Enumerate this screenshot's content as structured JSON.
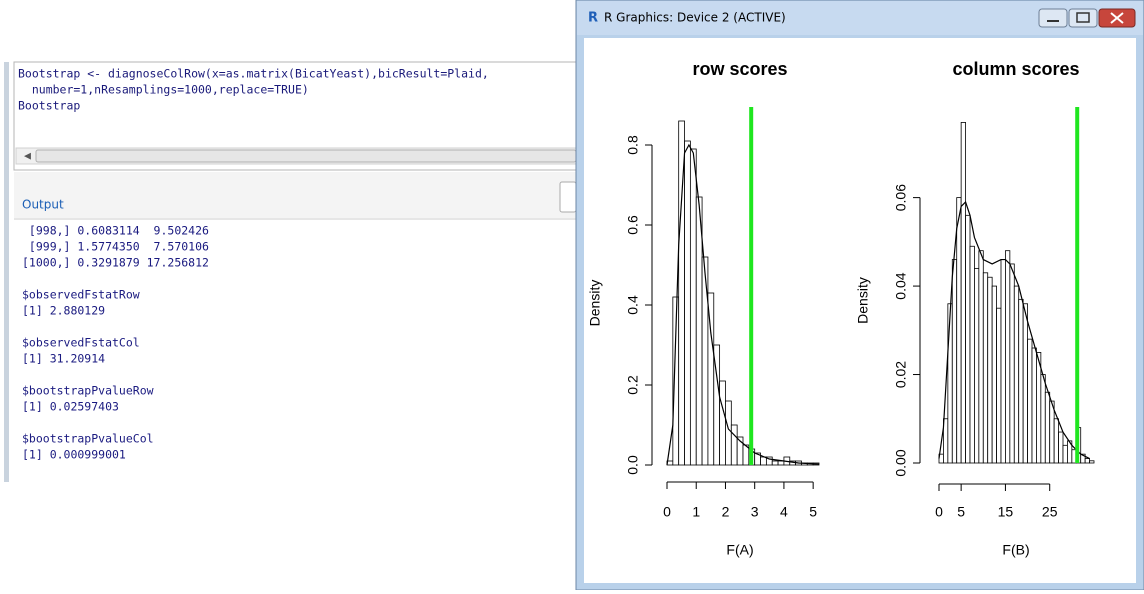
{
  "console": {
    "code": [
      "Bootstrap <- diagnoseColRow(x=as.matrix(BicatYeast),bicResult=Plaid,",
      "  number=1,nResamplings=1000,replace=TRUE)",
      "Bootstrap"
    ],
    "output_label": "Output",
    "output": [
      [
        " [998,] 0.6083114  9.502426",
        " [999,] 1.5774350  7.570106",
        "[1000,] 0.3291879 17.256812"
      ],
      [
        "$observedFstatRow",
        "[1] 2.880129"
      ],
      [
        "$observedFstatCol",
        "[1] 31.20914"
      ],
      [
        "$bootstrapPvalueRow",
        "[1] 0.02597403"
      ],
      [
        "$bootstrapPvalueCol",
        "[1] 0.000999001"
      ]
    ]
  },
  "window": {
    "title": "R Graphics: Device 2 (ACTIVE)"
  },
  "chart_data": [
    {
      "type": "histogram",
      "title": "row scores",
      "xlabel": "F(A)",
      "ylabel": "Density",
      "bins": [
        0,
        0.2,
        0.4,
        0.6,
        0.8,
        1,
        1.2,
        1.4,
        1.6,
        1.8,
        2,
        2.2,
        2.4,
        2.6,
        2.8,
        3,
        3.2,
        3.4,
        3.6,
        3.8,
        4,
        4.2,
        4.4,
        4.6,
        4.8,
        5,
        5.2
      ],
      "values": [
        0.01,
        0.42,
        0.86,
        0.81,
        0.79,
        0.67,
        0.52,
        0.43,
        0.3,
        0.21,
        0.16,
        0.1,
        0.07,
        0.05,
        0.04,
        0.03,
        0.02,
        0.02,
        0.01,
        0.01,
        0.02,
        0.01,
        0.01,
        0.005,
        0.005,
        0.005
      ],
      "density": {
        "x": [
          0,
          0.2,
          0.4,
          0.6,
          0.75,
          0.9,
          1.1,
          1.3,
          1.5,
          1.8,
          2.1,
          2.5,
          3,
          3.5,
          4,
          4.5,
          5.2
        ],
        "y": [
          0,
          0.1,
          0.55,
          0.78,
          0.8,
          0.78,
          0.65,
          0.48,
          0.33,
          0.17,
          0.09,
          0.06,
          0.03,
          0.015,
          0.01,
          0.005,
          0.002
        ]
      },
      "observed": {
        "x": 2.880129,
        "color": "#1fe61f"
      },
      "xlim": [
        0,
        5.2
      ],
      "ylim": [
        0,
        0.86
      ],
      "xticks": [
        0,
        1,
        2,
        3,
        4,
        5
      ],
      "yticks": [
        {
          "value": 0,
          "label": "0.0"
        },
        0.2,
        0.4,
        0.6,
        0.8
      ]
    },
    {
      "type": "histogram",
      "title": "column scores",
      "xlabel": "F(B)",
      "ylabel": "Density",
      "bins": [
        0,
        1,
        2,
        3,
        4,
        5,
        6,
        7,
        8,
        9,
        10,
        11,
        12,
        13,
        14,
        15,
        16,
        17,
        18,
        19,
        20,
        21,
        22,
        23,
        24,
        25,
        26,
        27,
        28,
        29,
        30,
        31,
        32,
        33,
        34,
        35
      ],
      "values": [
        0.002,
        0.01,
        0.036,
        0.046,
        0.06,
        0.077,
        0.056,
        0.049,
        0.044,
        0.048,
        0.043,
        0.042,
        0.04,
        0.035,
        0.046,
        0.048,
        0.045,
        0.04,
        0.037,
        0.036,
        0.028,
        0.026,
        0.025,
        0.02,
        0.016,
        0.014,
        0.01,
        0.007,
        0.004,
        0.005,
        0.003,
        0.008,
        0.002,
        0.001,
        0.0005
      ],
      "density": {
        "x": [
          0,
          1,
          2,
          3,
          4,
          5,
          6,
          7,
          8,
          10,
          12,
          14,
          15,
          16,
          18,
          20,
          22,
          24,
          26,
          28,
          30,
          32,
          34
        ],
        "y": [
          0.001,
          0.008,
          0.025,
          0.042,
          0.053,
          0.058,
          0.059,
          0.056,
          0.051,
          0.046,
          0.045,
          0.046,
          0.046,
          0.045,
          0.04,
          0.032,
          0.025,
          0.018,
          0.012,
          0.007,
          0.004,
          0.002,
          0.001
        ]
      },
      "observed": {
        "x": 31.20914,
        "color": "#1fe61f"
      },
      "xlim": [
        0,
        35
      ],
      "ylim": [
        0,
        0.078
      ],
      "xticks": [
        0,
        5,
        15,
        25
      ],
      "yticks": [
        {
          "value": 0,
          "label": "0.00"
        },
        {
          "value": 0.02,
          "label": "0.02"
        },
        {
          "value": 0.04,
          "label": "0.04"
        },
        {
          "value": 0.06,
          "label": "0.06"
        }
      ]
    }
  ]
}
